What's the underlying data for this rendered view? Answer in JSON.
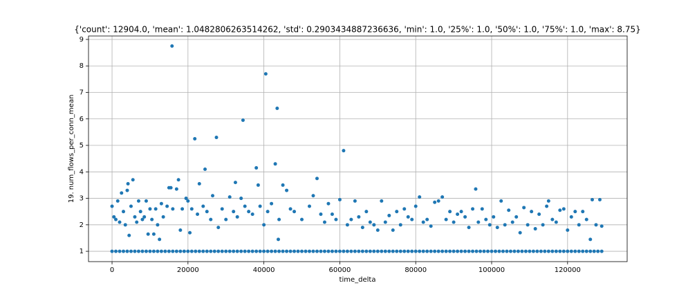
{
  "chart_data": {
    "type": "scatter",
    "title": "{'count': 12904.0, 'mean': 1.0482806263514262, 'std': 0.2903434887236636, 'min': 1.0, '25%': 1.0, '50%': 1.0, '75%': 1.0, 'max': 8.75}",
    "xlabel": "time_delta",
    "ylabel": "19. num_flows_per_conn_mean",
    "xlim": [
      -6200,
      135700
    ],
    "ylim": [
      0.61,
      9.13
    ],
    "xticks": [
      0,
      20000,
      40000,
      60000,
      80000,
      100000,
      120000
    ],
    "yticks": [
      1,
      2,
      3,
      4,
      5,
      6,
      7,
      8,
      9
    ],
    "grid": true,
    "series": [
      {
        "color": "#1f77b4",
        "x": [
          0,
          500,
          1000,
          1500,
          2000,
          2500,
          3000,
          3500,
          4000,
          4200,
          4500,
          5000,
          5500,
          6000,
          6500,
          7000,
          7500,
          8000,
          8500,
          9000,
          9500,
          10000,
          10500,
          11000,
          11500,
          12000,
          12500,
          13000,
          13500,
          14500,
          15000,
          15500,
          15800,
          16000,
          17000,
          17500,
          18000,
          18500,
          19500,
          20000,
          20500,
          21000,
          21800,
          22500,
          23000,
          24000,
          24500,
          25000,
          26000,
          26500,
          27500,
          28000,
          29000,
          30000,
          31000,
          32000,
          32500,
          33000,
          34000,
          34500,
          35000,
          36000,
          37000,
          38000,
          38500,
          39000,
          40000,
          40500,
          41000,
          42000,
          43000,
          43500,
          43800,
          44000,
          45000,
          46000,
          47000,
          48000,
          50000,
          52000,
          53000,
          54000,
          55000,
          56000,
          57000,
          58000,
          59000,
          60000,
          61000,
          62000,
          63000,
          64000,
          65000,
          66000,
          67000,
          68000,
          69000,
          70000,
          71000,
          72000,
          73000,
          74000,
          75000,
          76000,
          77000,
          78000,
          79000,
          80000,
          81000,
          82000,
          83000,
          84000,
          85000,
          86000,
          87000,
          88000,
          89000,
          90000,
          91000,
          92000,
          93000,
          94000,
          95000,
          95800,
          96500,
          97500,
          98500,
          99500,
          100500,
          101500,
          102500,
          103500,
          104500,
          105500,
          106500,
          107500,
          108500,
          109500,
          110500,
          111500,
          112500,
          113500,
          114500,
          115000,
          116000,
          117000,
          118000,
          119000,
          120000,
          121000,
          122000,
          123000,
          124000,
          125000,
          126000,
          126500,
          127500,
          128500,
          129000,
          0,
          1000,
          2000,
          3000,
          4000,
          5000,
          6000,
          7000,
          8000,
          9000,
          10000,
          11000,
          12000,
          13000,
          14000,
          15000,
          16000,
          17000,
          18000,
          19000,
          20000,
          21000,
          22000,
          23000,
          24000,
          25000,
          26000,
          27000,
          28000,
          29000,
          30000,
          31000,
          32000,
          33000,
          34000,
          35000,
          36000,
          37000,
          38000,
          39000,
          40000,
          41000,
          42000,
          43000,
          44000,
          45000,
          46000,
          47000,
          48000,
          49000,
          50000,
          51000,
          52000,
          53000,
          54000,
          55000,
          56000,
          57000,
          58000,
          59000,
          60000,
          61000,
          62000,
          63000,
          64000,
          65000,
          66000,
          67000,
          68000,
          69000,
          70000,
          71000,
          72000,
          73000,
          74000,
          75000,
          76000,
          77000,
          78000,
          79000,
          80000,
          81000,
          82000,
          83000,
          84000,
          85000,
          86000,
          87000,
          88000,
          89000,
          90000,
          91000,
          92000,
          93000,
          94000,
          95000,
          96000,
          97000,
          98000,
          99000,
          100000,
          101000,
          102000,
          103000,
          104000,
          105000,
          106000,
          107000,
          108000,
          109000,
          110000,
          111000,
          112000,
          113000,
          114000,
          115000,
          116000,
          117000,
          118000,
          119000,
          120000,
          121000,
          122000,
          123000,
          124000,
          125000,
          126000,
          127000,
          128000,
          129000
        ],
        "values": [
          2.7,
          2.3,
          2.2,
          2.9,
          2.1,
          3.2,
          2.5,
          2.0,
          3.3,
          3.55,
          1.6,
          2.7,
          3.7,
          2.3,
          2.1,
          2.9,
          2.5,
          2.2,
          2.3,
          2.9,
          1.65,
          2.6,
          2.2,
          1.65,
          2.6,
          2.0,
          1.45,
          2.8,
          2.3,
          2.7,
          3.4,
          3.4,
          8.75,
          2.6,
          3.35,
          3.7,
          1.8,
          2.6,
          3.0,
          2.9,
          1.7,
          2.6,
          5.25,
          2.4,
          3.55,
          2.7,
          4.1,
          2.5,
          2.2,
          3.1,
          5.3,
          1.9,
          2.6,
          2.2,
          3.05,
          2.5,
          3.6,
          2.3,
          3.0,
          5.95,
          2.7,
          2.5,
          2.4,
          4.15,
          3.5,
          2.7,
          2.0,
          7.7,
          2.5,
          2.8,
          4.3,
          6.4,
          1.45,
          2.2,
          3.5,
          3.3,
          2.6,
          2.5,
          2.2,
          2.7,
          3.1,
          3.75,
          2.4,
          2.1,
          2.8,
          2.4,
          2.2,
          2.95,
          4.8,
          2.0,
          2.2,
          2.9,
          2.3,
          1.9,
          2.5,
          2.1,
          2.0,
          1.8,
          2.9,
          2.1,
          2.35,
          1.8,
          2.5,
          2.0,
          2.6,
          2.3,
          2.2,
          2.7,
          3.05,
          2.1,
          2.2,
          1.95,
          2.85,
          2.9,
          3.05,
          2.2,
          2.5,
          2.1,
          2.4,
          2.5,
          2.3,
          1.9,
          2.6,
          3.35,
          2.1,
          2.6,
          2.2,
          2.0,
          2.3,
          1.9,
          2.9,
          2.0,
          2.55,
          2.1,
          2.3,
          1.7,
          2.65,
          2.0,
          2.5,
          1.85,
          2.4,
          2.0,
          2.7,
          2.9,
          2.2,
          2.1,
          2.55,
          2.6,
          1.8,
          2.3,
          2.5,
          2.0,
          2.5,
          2.2,
          1.45,
          2.95,
          2.0,
          2.95,
          1.95,
          1,
          1,
          1,
          1,
          1,
          1,
          1,
          1,
          1,
          1,
          1,
          1,
          1,
          1,
          1,
          1,
          1,
          1,
          1,
          1,
          1,
          1,
          1,
          1,
          1,
          1,
          1,
          1,
          1,
          1,
          1,
          1,
          1,
          1,
          1,
          1,
          1,
          1,
          1,
          1,
          1,
          1,
          1,
          1,
          1,
          1,
          1,
          1,
          1,
          1,
          1,
          1,
          1,
          1,
          1,
          1,
          1,
          1,
          1,
          1,
          1,
          1,
          1,
          1,
          1,
          1,
          1,
          1,
          1,
          1,
          1,
          1,
          1,
          1,
          1,
          1,
          1,
          1,
          1,
          1,
          1,
          1,
          1,
          1,
          1,
          1,
          1,
          1,
          1,
          1,
          1,
          1,
          1,
          1,
          1,
          1,
          1,
          1,
          1,
          1,
          1,
          1,
          1,
          1,
          1,
          1,
          1,
          1,
          1,
          1,
          1,
          1,
          1,
          1,
          1,
          1,
          1,
          1,
          1,
          1,
          1,
          1,
          1,
          1,
          1,
          1,
          1,
          1,
          1,
          1
        ]
      }
    ]
  }
}
